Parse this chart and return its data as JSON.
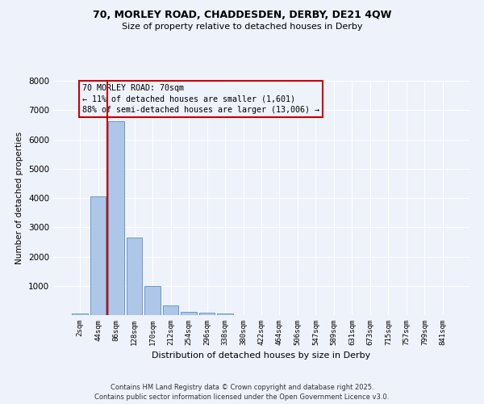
{
  "title1": "70, MORLEY ROAD, CHADDESDEN, DERBY, DE21 4QW",
  "title2": "Size of property relative to detached houses in Derby",
  "xlabel": "Distribution of detached houses by size in Derby",
  "ylabel": "Number of detached properties",
  "categories": [
    "2sqm",
    "44sqm",
    "86sqm",
    "128sqm",
    "170sqm",
    "212sqm",
    "254sqm",
    "296sqm",
    "338sqm",
    "380sqm",
    "422sqm",
    "464sqm",
    "506sqm",
    "547sqm",
    "589sqm",
    "631sqm",
    "673sqm",
    "715sqm",
    "757sqm",
    "799sqm",
    "841sqm"
  ],
  "values": [
    60,
    4050,
    6620,
    2650,
    1000,
    330,
    110,
    80,
    50,
    0,
    0,
    0,
    0,
    0,
    0,
    0,
    0,
    0,
    0,
    0,
    0
  ],
  "bar_color": "#aec6e8",
  "bar_edge_color": "#5a8fc0",
  "vline_color": "#cc0000",
  "vline_pos": 1.5,
  "annotation_text": "70 MORLEY ROAD: 70sqm\n← 11% of detached houses are smaller (1,601)\n88% of semi-detached houses are larger (13,006) →",
  "annotation_box_color": "#cc0000",
  "annotation_text_color": "#000000",
  "ylim": [
    0,
    8000
  ],
  "yticks": [
    0,
    1000,
    2000,
    3000,
    4000,
    5000,
    6000,
    7000,
    8000
  ],
  "background_color": "#eef2fb",
  "grid_color": "#ffffff",
  "footer1": "Contains HM Land Registry data © Crown copyright and database right 2025.",
  "footer2": "Contains public sector information licensed under the Open Government Licence v3.0."
}
